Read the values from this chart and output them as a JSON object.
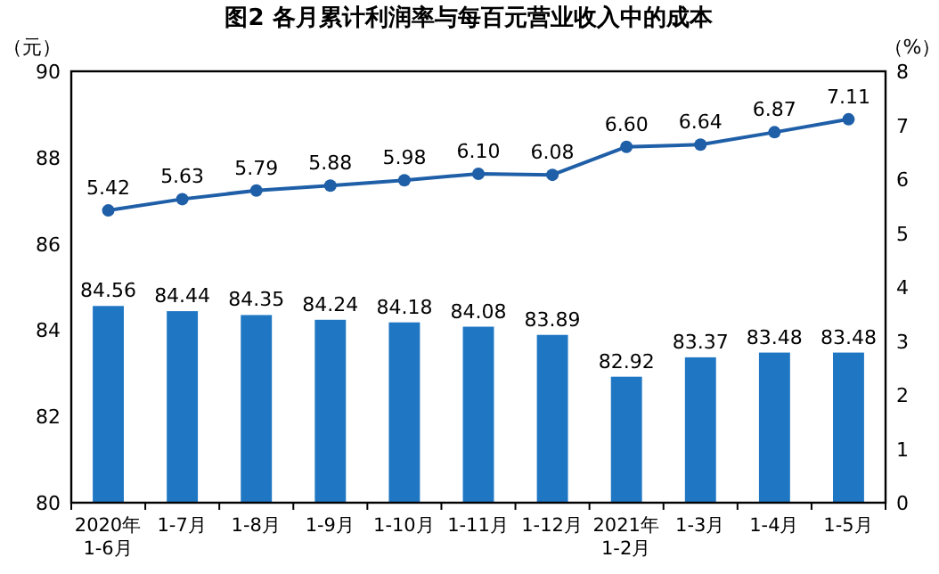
{
  "chart_data": {
    "type": "bar",
    "title": "图2 各月累计利润率与每百元营业收入中的成本",
    "ylabel": "（元）",
    "y2label": "（%）",
    "categories": [
      "2020年\n1-6月",
      "1-7月",
      "1-8月",
      "1-9月",
      "1-10月",
      "1-11月",
      "1-12月",
      "2021年\n1-2月",
      "1-3月",
      "1-4月",
      "1-5月"
    ],
    "series": [
      {
        "color": "#1f77c4",
        "values": [
          84.56,
          84.44,
          84.35,
          84.24,
          84.18,
          84.08,
          83.89,
          82.92,
          83.37,
          83.48,
          83.48
        ]
      },
      {
        "type": "line",
        "axis": "y2",
        "color": "#1f5fa8",
        "marker": "circle",
        "values": [
          5.42,
          5.63,
          5.79,
          5.88,
          5.98,
          6.1,
          6.08,
          6.6,
          6.64,
          6.87,
          7.11
        ],
        "value_labels": [
          "5.42",
          "5.63",
          "5.79",
          "5.88",
          "5.98",
          "6.10",
          "6.08",
          "6.60",
          "6.64",
          "6.87",
          "7.11"
        ]
      }
    ],
    "ylim": [
      80,
      90
    ],
    "yticks": [
      80,
      82,
      84,
      86,
      88,
      90
    ],
    "y2lim": [
      0,
      8
    ],
    "y2ticks": [
      0,
      1,
      2,
      3,
      4,
      5,
      6,
      7,
      8
    ],
    "data_labels": true
  }
}
